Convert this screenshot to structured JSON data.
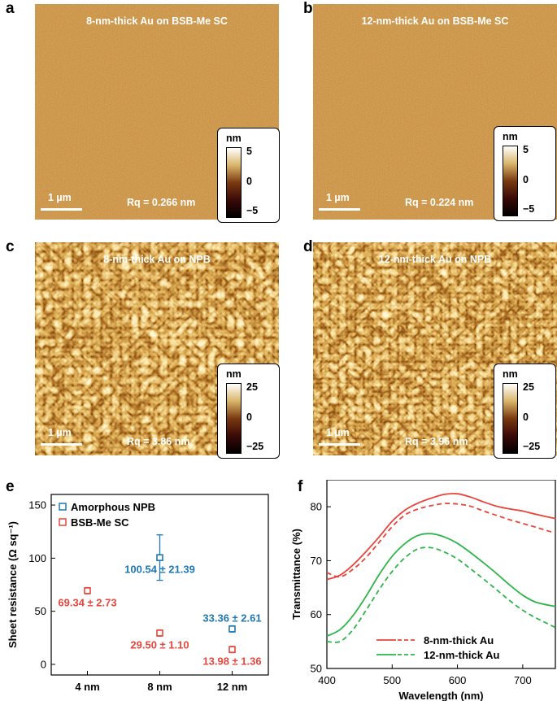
{
  "figure": {
    "panels": {
      "a": {
        "letter": "a",
        "title": "8-nm-thick Au on BSB-Me SC",
        "scale_bar": "1 µm",
        "rq": "Rq = 0.266 nm",
        "colorbar": {
          "unit": "nm",
          "max": "5",
          "mid": "0",
          "min": "−5"
        }
      },
      "b": {
        "letter": "b",
        "title": "12-nm-thick Au on BSB-Me SC",
        "scale_bar": "1 µm",
        "rq": "Rq = 0.224 nm",
        "colorbar": {
          "unit": "nm",
          "max": "5",
          "mid": "0",
          "min": "−5"
        }
      },
      "c": {
        "letter": "c",
        "title": "8-nm-thick Au on NPB",
        "scale_bar": "1 µm",
        "rq": "Rq = 3.86 nm",
        "colorbar": {
          "unit": "nm",
          "max": "25",
          "mid": "0",
          "min": "−25"
        }
      },
      "d": {
        "letter": "d",
        "title": "12-nm-thick Au on NPB",
        "scale_bar": "1 µm",
        "rq": "Rq = 3.96 nm",
        "colorbar": {
          "unit": "nm",
          "max": "25",
          "mid": "0",
          "min": "−25"
        }
      },
      "e": {
        "letter": "e"
      },
      "f": {
        "letter": "f"
      }
    },
    "colors": {
      "afm_dark": "#3a1400",
      "afm_mid": "#8b4a12",
      "afm_light": "#f0d9a0",
      "blue": "#1f77b4",
      "red": "#e8453c",
      "green": "#2db54a"
    }
  },
  "chart_data": [
    {
      "type": "scatter",
      "panel": "e",
      "ylabel": "Sheet resistance (Ω sq⁻¹)",
      "xlabel": "",
      "categories": [
        "4 nm",
        "8 nm",
        "12 nm"
      ],
      "ylim": [
        -10,
        160
      ],
      "yticks": [
        0,
        50,
        100,
        150
      ],
      "legend_position": "top-left",
      "series": [
        {
          "name": "Amorphous NPB",
          "color": "#1f77b4",
          "points": [
            {
              "category": "8 nm",
              "value": 100.54,
              "error": 21.39,
              "label": "100.54 ± 21.39"
            },
            {
              "category": "12 nm",
              "value": 33.36,
              "error": 2.61,
              "label": "33.36 ± 2.61"
            }
          ]
        },
        {
          "name": "BSB-Me SC",
          "color": "#e8453c",
          "points": [
            {
              "category": "4 nm",
              "value": 69.34,
              "error": 2.73,
              "label": "69.34 ± 2.73"
            },
            {
              "category": "8 nm",
              "value": 29.5,
              "error": 1.1,
              "label": "29.50 ± 1.10"
            },
            {
              "category": "12 nm",
              "value": 13.98,
              "error": 1.36,
              "label": "13.98 ± 1.36"
            }
          ]
        }
      ]
    },
    {
      "type": "line",
      "panel": "f",
      "xlabel": "Wavelength (nm)",
      "ylabel": "Transmittance (%)",
      "xlim": [
        400,
        750
      ],
      "ylim": [
        50,
        85
      ],
      "xticks": [
        400,
        500,
        600,
        700
      ],
      "yticks": [
        50,
        60,
        70,
        80
      ],
      "legend_position": "bottom-center",
      "legend": [
        "8-nm-thick Au",
        "12-nm-thick Au"
      ],
      "series": [
        {
          "name": "8-nm-thick Au (BSB-Me SC)",
          "color": "#e8453c",
          "style": "solid",
          "x": [
            400,
            420,
            440,
            460,
            480,
            500,
            520,
            540,
            560,
            580,
            600,
            620,
            640,
            660,
            680,
            700,
            720,
            750
          ],
          "y": [
            66.5,
            67.3,
            69.2,
            71.7,
            74.4,
            77.3,
            79.4,
            80.7,
            81.6,
            82.3,
            82.4,
            81.8,
            80.9,
            80.1,
            79.6,
            79.2,
            78.6,
            77.8
          ]
        },
        {
          "name": "8-nm-thick Au (NPB)",
          "color": "#e8453c",
          "style": "dashed",
          "x": [
            400,
            420,
            440,
            460,
            480,
            500,
            520,
            540,
            560,
            580,
            600,
            620,
            640,
            660,
            680,
            700,
            720,
            750
          ],
          "y": [
            67.8,
            67.0,
            68.4,
            70.6,
            73.4,
            76.3,
            78.5,
            79.6,
            80.2,
            80.6,
            80.5,
            80.1,
            79.2,
            78.4,
            77.6,
            76.9,
            76.2,
            75.1
          ]
        },
        {
          "name": "12-nm-thick Au (BSB-Me SC)",
          "color": "#2db54a",
          "style": "solid",
          "x": [
            400,
            420,
            440,
            460,
            480,
            500,
            520,
            540,
            560,
            580,
            600,
            620,
            640,
            660,
            680,
            700,
            720,
            750
          ],
          "y": [
            56.0,
            57.2,
            59.8,
            63.4,
            67.4,
            70.8,
            73.2,
            74.7,
            75.0,
            74.4,
            73.2,
            71.5,
            69.6,
            67.6,
            65.5,
            63.6,
            62.3,
            61.5
          ]
        },
        {
          "name": "12-nm-thick Au (NPB)",
          "color": "#2db54a",
          "style": "dashed",
          "x": [
            400,
            420,
            440,
            460,
            480,
            500,
            520,
            540,
            560,
            580,
            600,
            620,
            640,
            660,
            680,
            700,
            720,
            750
          ],
          "y": [
            55.0,
            55.0,
            57.2,
            60.8,
            64.6,
            68.0,
            70.6,
            72.2,
            72.4,
            71.6,
            70.3,
            68.5,
            66.6,
            64.6,
            62.6,
            60.8,
            59.4,
            57.6
          ]
        }
      ]
    }
  ]
}
